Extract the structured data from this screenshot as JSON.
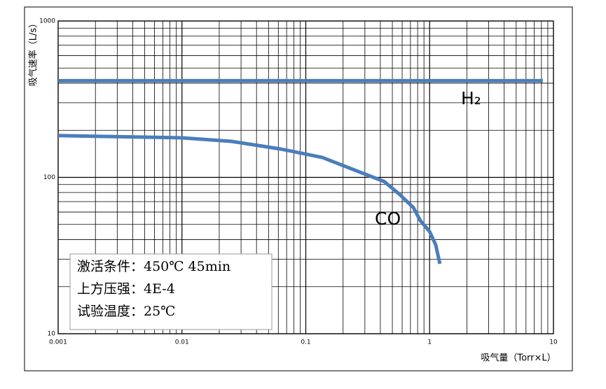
{
  "chart_data": {
    "type": "line",
    "x_label": "吸气量（Torr×L）",
    "y_label": "吸气速率（L/s）",
    "xlim": [
      0.001,
      10
    ],
    "ylim": [
      10,
      1000
    ],
    "xticks": [
      0.001,
      0.01,
      0.1,
      1,
      10
    ],
    "yticks": [
      10,
      100,
      1000
    ],
    "xscale": "log",
    "yscale": "log",
    "grid": true,
    "series": [
      {
        "name": "H₂",
        "color": "#4a7ebb",
        "x": [
          0.001,
          8.2
        ],
        "values": [
          415,
          415
        ]
      },
      {
        "name": "CO",
        "color": "#4a7ebb",
        "x": [
          0.001,
          0.01,
          0.025,
          0.062,
          0.136,
          0.3,
          0.43,
          0.57,
          0.74,
          0.84,
          1.0,
          1.12,
          1.21
        ],
        "values": [
          185,
          179,
          170,
          152,
          134,
          105,
          94,
          78,
          64,
          53,
          45,
          37,
          28
        ]
      }
    ],
    "annotations": [
      "激活条件：450℃ 45min",
      "上方压强：4E-4",
      "试验温度：25℃"
    ]
  }
}
